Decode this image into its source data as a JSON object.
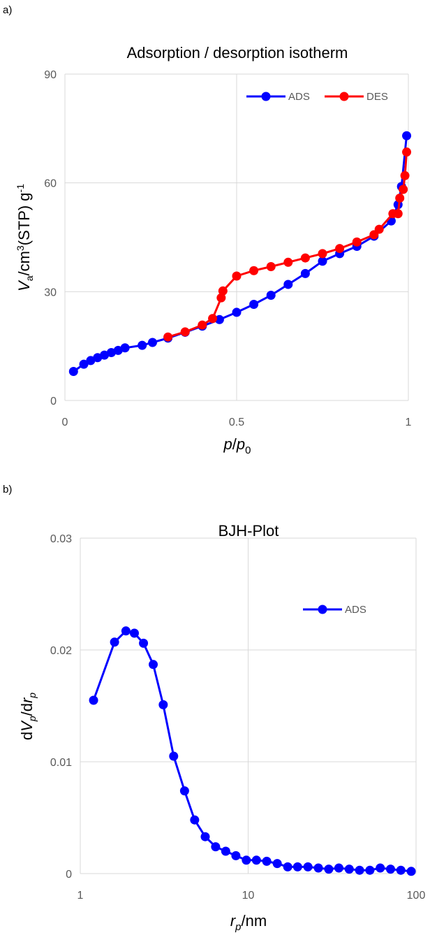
{
  "panel_a": {
    "label": "a)"
  },
  "panel_b": {
    "label": "b)"
  },
  "chart_data": [
    {
      "type": "line",
      "title": "Adsorption / desorption isotherm",
      "xlabel": "p/p0",
      "ylabel": "Va/cm3(STP) g-1",
      "xlim": [
        0,
        1
      ],
      "ylim": [
        0,
        90
      ],
      "x_ticks": [
        "0",
        "0.5",
        "1"
      ],
      "y_ticks": [
        "0",
        "30",
        "60",
        "90"
      ],
      "grid": true,
      "legend": "top-right",
      "series": [
        {
          "name": "ADS",
          "color": "#0000FF",
          "x": [
            0.025,
            0.055,
            0.075,
            0.095,
            0.115,
            0.135,
            0.155,
            0.175,
            0.225,
            0.255,
            0.3,
            0.35,
            0.4,
            0.45,
            0.5,
            0.55,
            0.6,
            0.65,
            0.7,
            0.75,
            0.8,
            0.85,
            0.9,
            0.95,
            0.97,
            0.98,
            0.995
          ],
          "y": [
            8,
            10,
            11,
            11.8,
            12.5,
            13.2,
            13.8,
            14.5,
            15.2,
            16,
            17.2,
            18.8,
            20.5,
            22.3,
            24.3,
            26.5,
            29,
            32,
            35,
            38.4,
            40.5,
            42.5,
            45.3,
            49.5,
            54,
            59,
            73
          ]
        },
        {
          "name": "DES",
          "color": "#FF0000",
          "x": [
            0.995,
            0.99,
            0.985,
            0.975,
            0.97,
            0.955,
            0.915,
            0.9,
            0.85,
            0.8,
            0.75,
            0.7,
            0.65,
            0.6,
            0.55,
            0.5,
            0.46,
            0.455,
            0.43,
            0.4,
            0.35,
            0.3
          ],
          "y": [
            68.5,
            62,
            58.2,
            55.8,
            51.5,
            51.5,
            47.2,
            45.7,
            43.7,
            41.9,
            40.5,
            39.3,
            38.1,
            36.9,
            35.8,
            34.3,
            30.2,
            28.3,
            22.6,
            20.8,
            18.9,
            17.5
          ]
        }
      ]
    },
    {
      "type": "line",
      "title": "BJH-Plot",
      "xlabel": "rp/nm",
      "ylabel": "dVp/drp",
      "xscale": "log",
      "xlim": [
        1,
        100
      ],
      "ylim": [
        0,
        0.03
      ],
      "x_ticks": [
        "1",
        "10",
        "100"
      ],
      "y_ticks": [
        "0",
        "0.01",
        "0.02",
        "0.03"
      ],
      "grid": true,
      "legend": "top-right",
      "series": [
        {
          "name": "ADS",
          "color": "#0000FF",
          "x": [
            1.2,
            1.6,
            1.87,
            2.1,
            2.38,
            2.72,
            3.12,
            3.6,
            4.18,
            4.8,
            5.55,
            6.4,
            7.35,
            8.45,
            9.75,
            11.2,
            12.9,
            14.9,
            17.2,
            19.7,
            22.7,
            26.2,
            30.2,
            34.7,
            40.0,
            46.1,
            53.1,
            61.2,
            70.5,
            81.2,
            93.6
          ],
          "y": [
            0.0155,
            0.0207,
            0.0217,
            0.0215,
            0.0206,
            0.0187,
            0.0151,
            0.0105,
            0.0074,
            0.0048,
            0.0033,
            0.0024,
            0.002,
            0.0016,
            0.0012,
            0.0012,
            0.0011,
            0.0009,
            0.0006,
            0.0006,
            0.0006,
            0.0005,
            0.0004,
            0.0005,
            0.0004,
            0.0003,
            0.0003,
            0.0005,
            0.0004,
            0.0003,
            0.0002
          ]
        }
      ]
    }
  ]
}
